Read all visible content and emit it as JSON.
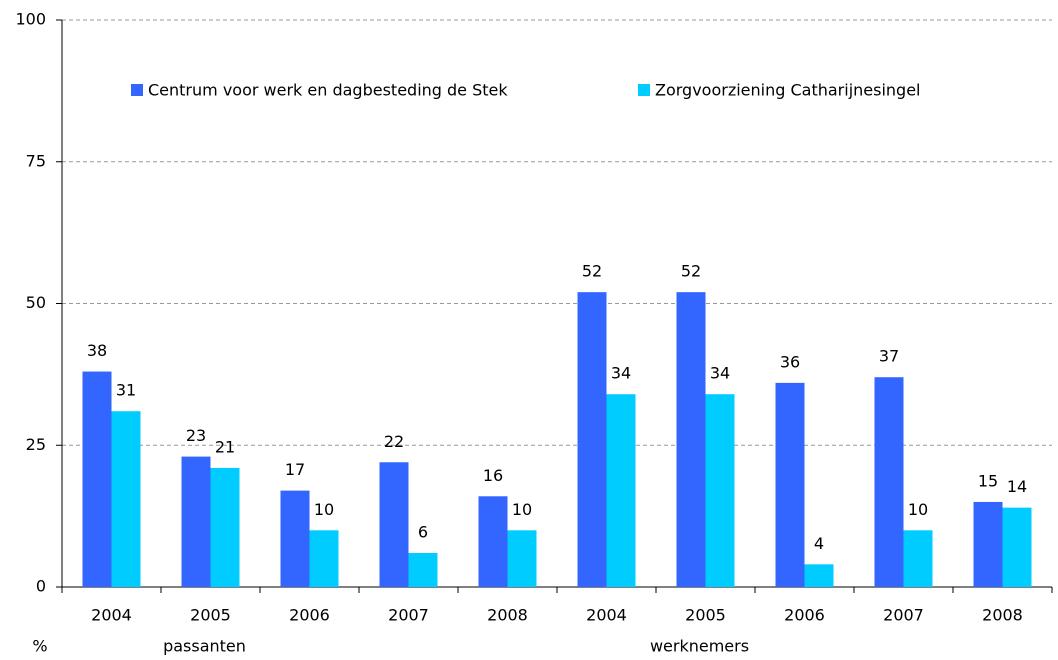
{
  "chart_data": {
    "type": "bar",
    "categories": [
      "2004",
      "2005",
      "2006",
      "2007",
      "2008",
      "2004",
      "2005",
      "2006",
      "2007",
      "2008"
    ],
    "group_labels": [
      "passanten",
      "werknemers"
    ],
    "y_label": "%",
    "series": [
      {
        "name": "Centrum voor werk en dagbesteding de Stek",
        "color": "#3366ff",
        "values": [
          38,
          23,
          17,
          22,
          16,
          52,
          52,
          36,
          37,
          15
        ]
      },
      {
        "name": "Zorgvoorziening Catharijnesingel",
        "color": "#00ccff",
        "values": [
          31,
          21,
          10,
          6,
          10,
          34,
          34,
          4,
          10,
          14
        ]
      }
    ],
    "ylim": [
      0,
      100
    ],
    "yticks": [
      0,
      25,
      50,
      75,
      100
    ],
    "grid": true
  }
}
